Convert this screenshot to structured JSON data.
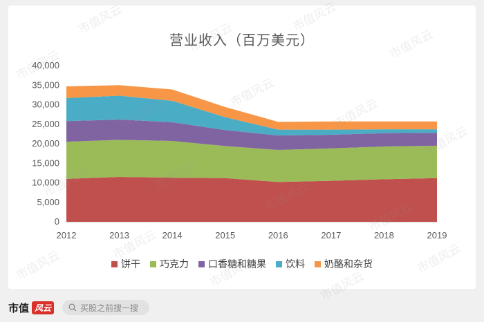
{
  "chart_data": {
    "type": "area",
    "title": "营业收入（百万美元）",
    "categories": [
      "2012",
      "2013",
      "2014",
      "2015",
      "2016",
      "2017",
      "2018",
      "2019"
    ],
    "ylim": [
      0,
      40000
    ],
    "yticks": [
      "0",
      "5,000",
      "10,000",
      "15,000",
      "20,000",
      "25,000",
      "30,000",
      "35,000",
      "40,000"
    ],
    "stacked": true,
    "grid": false,
    "legend_position": "bottom",
    "series": [
      {
        "name": "饼干",
        "color": "#c0504d",
        "values": [
          11000,
          11500,
          11300,
          11200,
          10200,
          10500,
          10900,
          11200
        ]
      },
      {
        "name": "巧克力",
        "color": "#9bbb59",
        "values": [
          9500,
          9500,
          9400,
          8200,
          8200,
          8300,
          8400,
          8300
        ]
      },
      {
        "name": "口香糖和糖果",
        "color": "#8064a2",
        "values": [
          5300,
          5200,
          4800,
          4100,
          3700,
          3500,
          3400,
          3300
        ]
      },
      {
        "name": "饮料",
        "color": "#4bacc6",
        "values": [
          5900,
          6100,
          5500,
          3300,
          1500,
          1300,
          1000,
          900
        ]
      },
      {
        "name": "奶酪和杂货",
        "color": "#f79646",
        "values": [
          3000,
          2700,
          2900,
          2600,
          2000,
          2100,
          2000,
          2000
        ]
      }
    ]
  },
  "footer": {
    "brand": "市值",
    "brand_badge": "风云",
    "search_placeholder": "买股之前搜一搜"
  },
  "watermark": "市值风云"
}
